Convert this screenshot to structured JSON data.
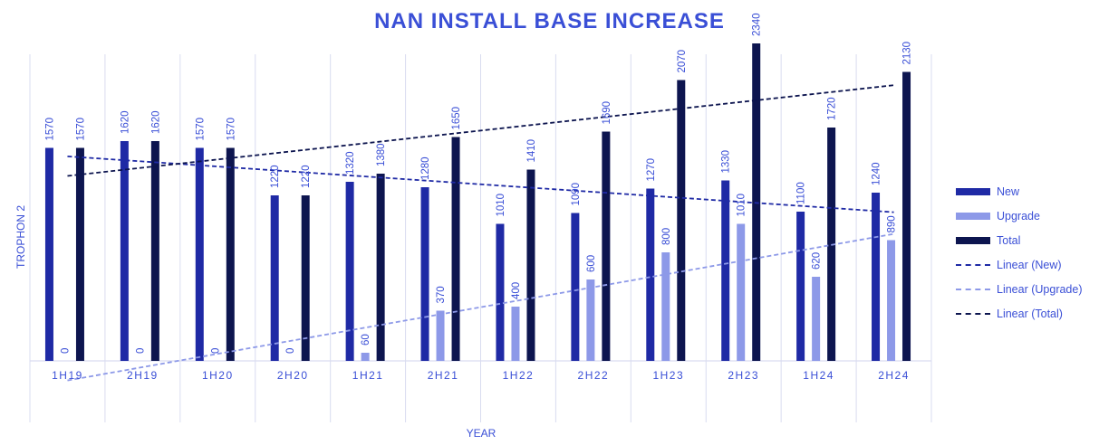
{
  "colors": {
    "new": "#1f2aa5",
    "upgrade": "#8d99e8",
    "total": "#0d154f",
    "trend_new": "#1f2aa5",
    "trend_upgrade": "#8d99e8",
    "trend_total": "#0d154f",
    "title": "#3a4fd6",
    "text": "#3a4fd6",
    "grid": "#d9dcf0"
  },
  "chart_data": {
    "type": "bar",
    "title": "NAN INSTALL BASE INCREASE",
    "xlabel": "YEAR",
    "ylabel": "TROPHON 2",
    "categories": [
      "1H19",
      "2H19",
      "1H20",
      "2H20",
      "1H21",
      "2H21",
      "1H22",
      "2H22",
      "1H23",
      "2H23",
      "1H24",
      "2H24"
    ],
    "series": [
      {
        "name": "New",
        "values": [
          1570,
          1620,
          1570,
          1220,
          1320,
          1280,
          1010,
          1090,
          1270,
          1330,
          1100,
          1240
        ]
      },
      {
        "name": "Upgrade",
        "values": [
          0,
          0,
          0,
          0,
          60,
          370,
          400,
          600,
          800,
          1010,
          620,
          890
        ]
      },
      {
        "name": "Total",
        "values": [
          1570,
          1620,
          1570,
          1220,
          1380,
          1650,
          1410,
          1690,
          2070,
          2340,
          1720,
          2130
        ]
      }
    ],
    "trendlines": [
      {
        "name": "Linear (New)",
        "series": "New"
      },
      {
        "name": "Linear (Upgrade)",
        "series": "Upgrade"
      },
      {
        "name": "Linear (Total)",
        "series": "Total"
      }
    ],
    "ylim": [
      0,
      2400
    ],
    "grid": "vertical",
    "legend": "right"
  }
}
